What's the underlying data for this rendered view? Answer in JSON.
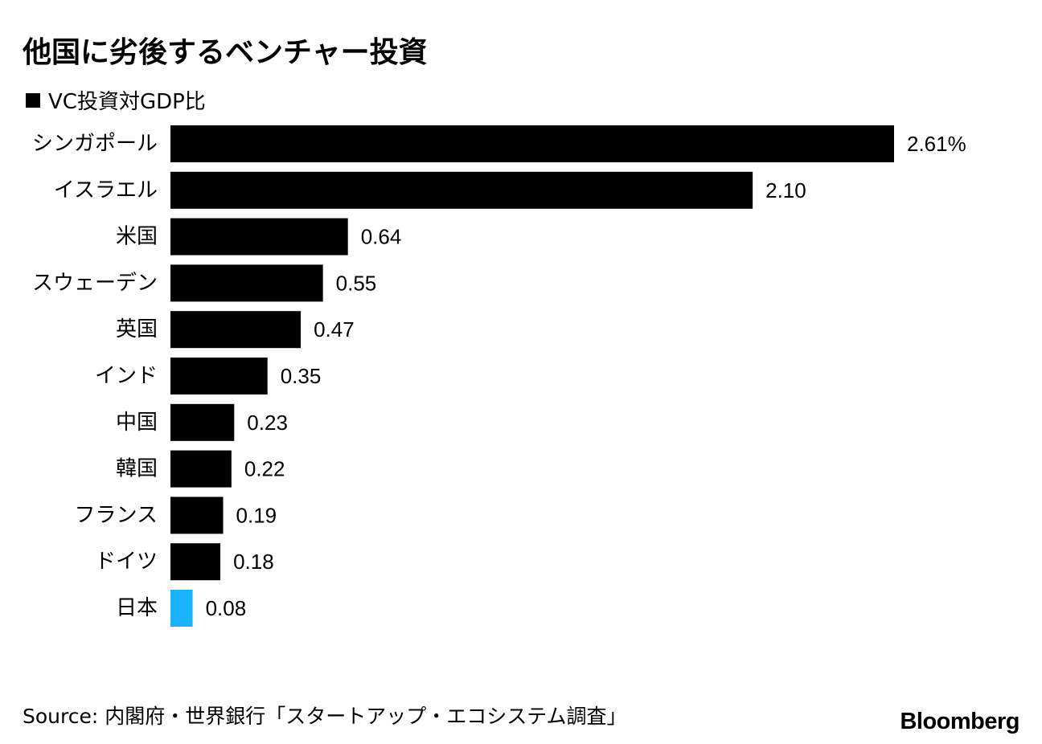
{
  "title": "他国に劣後するベンチャー投資",
  "legend": {
    "label": "VC投資対GDP比",
    "color": "#000000"
  },
  "chart_data": {
    "type": "bar",
    "orientation": "horizontal",
    "categories": [
      "シンガポール",
      "イスラエル",
      "米国",
      "スウェーデン",
      "英国",
      "インド",
      "中国",
      "韓国",
      "フランス",
      "ドイツ",
      "日本"
    ],
    "values": [
      2.61,
      2.1,
      0.64,
      0.55,
      0.47,
      0.35,
      0.23,
      0.22,
      0.19,
      0.18,
      0.08
    ],
    "value_labels": [
      "2.61%",
      "2.10",
      "0.64",
      "0.55",
      "0.47",
      "0.35",
      "0.23",
      "0.22",
      "0.19",
      "0.18",
      "0.08"
    ],
    "series_name": "VC投資対GDP比",
    "bar_color": "#000000",
    "highlight": {
      "category": "日本",
      "color": "#1ab2ff"
    },
    "xlim": [
      0,
      2.61
    ],
    "grid": false
  },
  "source": "Source: 内閣府・世界銀行「スタートアップ・エコシステム調査」",
  "brand": "Bloomberg"
}
